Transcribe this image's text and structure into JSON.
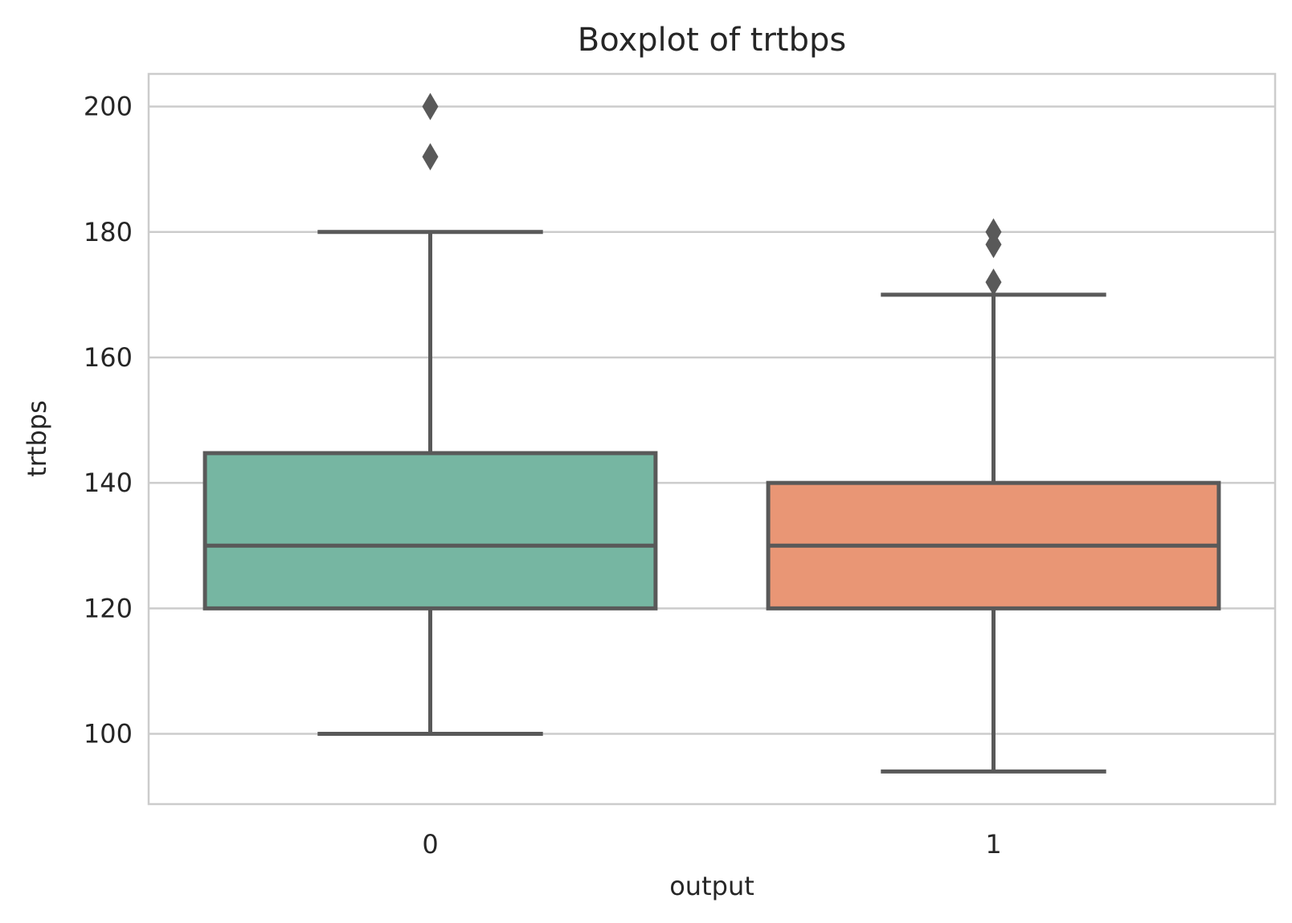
{
  "chart_data": {
    "type": "box",
    "title": "Boxplot of trtbps",
    "xlabel": "output",
    "ylabel": "trtbps",
    "categories": [
      "0",
      "1"
    ],
    "ylim": [
      88.8,
      205.2
    ],
    "yticks": [
      100,
      120,
      140,
      160,
      180,
      200
    ],
    "grid": true,
    "series": [
      {
        "category": "0",
        "whisker_low": 100,
        "q1": 120,
        "median": 130,
        "q3": 144.75,
        "whisker_high": 180,
        "outliers": [
          192,
          200
        ],
        "color": "#76b6a2"
      },
      {
        "category": "1",
        "whisker_low": 94,
        "q1": 120,
        "median": 130,
        "q3": 140,
        "whisker_high": 170,
        "outliers": [
          172,
          178,
          180
        ],
        "color": "#e99675"
      }
    ],
    "line_color": "#595959",
    "grid_color": "#cccccc"
  }
}
